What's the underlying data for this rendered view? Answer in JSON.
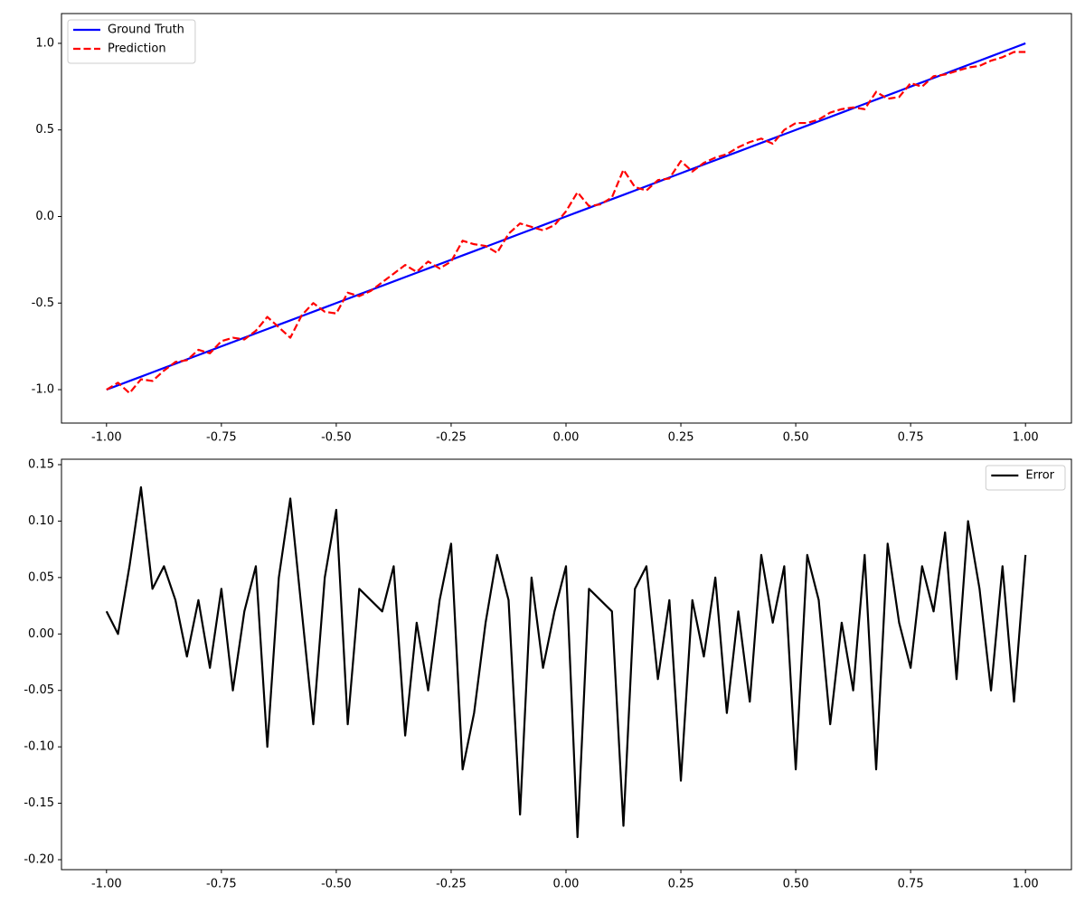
{
  "chart_data": [
    {
      "type": "line",
      "legend": "upper left",
      "xlim": [
        -1.098,
        1.1
      ],
      "ylim": [
        -1.193,
        1.172
      ],
      "xticks": [
        {
          "value": -1.0,
          "label": "-1.00"
        },
        {
          "value": -0.75,
          "label": "-0.75"
        },
        {
          "value": -0.5,
          "label": "-0.50"
        },
        {
          "value": -0.25,
          "label": "-0.25"
        },
        {
          "value": 0,
          "label": "0.00"
        },
        {
          "value": 0.25,
          "label": "0.25"
        },
        {
          "value": 0.5,
          "label": "0.50"
        },
        {
          "value": 0.75,
          "label": "0.75"
        },
        {
          "value": 1.0,
          "label": "1.00"
        }
      ],
      "yticks": [
        {
          "value": -1.0,
          "label": "-1.0"
        },
        -0.5,
        {
          "value": 0,
          "label": "0.0"
        },
        0.5,
        {
          "value": 1.0,
          "label": "1.0"
        }
      ],
      "x": [
        -1.0,
        -0.975,
        -0.95,
        -0.925,
        -0.9,
        -0.875,
        -0.85,
        -0.825,
        -0.8,
        -0.775,
        -0.75,
        -0.725,
        -0.7,
        -0.675,
        -0.65,
        -0.625,
        -0.6,
        -0.575,
        -0.55,
        -0.525,
        -0.5,
        -0.475,
        -0.45,
        -0.425,
        -0.4,
        -0.375,
        -0.35,
        -0.325,
        -0.3,
        -0.275,
        -0.25,
        -0.225,
        -0.2,
        -0.175,
        -0.15,
        -0.125,
        -0.1,
        -0.075,
        -0.05,
        -0.025,
        0,
        0.025,
        0.05,
        0.075,
        0.1,
        0.125,
        0.15,
        0.175,
        0.2,
        0.225,
        0.25,
        0.275,
        0.3,
        0.325,
        0.35,
        0.375,
        0.4,
        0.425,
        0.45,
        0.475,
        0.5,
        0.525,
        0.55,
        0.575,
        0.6,
        0.625,
        0.65,
        0.675,
        0.7,
        0.725,
        0.75,
        0.775,
        0.8,
        0.825,
        0.85,
        0.875,
        0.9,
        0.925,
        0.95,
        0.975,
        1.0
      ],
      "series": [
        {
          "name": "Ground Truth",
          "color": "#0000ff",
          "linestyle": "solid",
          "values": [
            -1.0,
            -0.975,
            -0.95,
            -0.925,
            -0.9,
            -0.875,
            -0.85,
            -0.825,
            -0.8,
            -0.775,
            -0.75,
            -0.725,
            -0.7,
            -0.675,
            -0.65,
            -0.625,
            -0.6,
            -0.575,
            -0.55,
            -0.525,
            -0.5,
            -0.475,
            -0.45,
            -0.425,
            -0.4,
            -0.375,
            -0.35,
            -0.325,
            -0.3,
            -0.275,
            -0.25,
            -0.225,
            -0.2,
            -0.175,
            -0.15,
            -0.125,
            -0.1,
            -0.075,
            -0.05,
            -0.025,
            0,
            0.025,
            0.05,
            0.075,
            0.1,
            0.125,
            0.15,
            0.175,
            0.2,
            0.225,
            0.25,
            0.275,
            0.3,
            0.325,
            0.35,
            0.375,
            0.4,
            0.425,
            0.45,
            0.475,
            0.5,
            0.525,
            0.55,
            0.575,
            0.6,
            0.625,
            0.65,
            0.675,
            0.7,
            0.725,
            0.75,
            0.775,
            0.8,
            0.825,
            0.85,
            0.875,
            0.9,
            0.925,
            0.95,
            0.975,
            1.0
          ]
        },
        {
          "name": "Prediction",
          "color": "#ff0000",
          "linestyle": "dashed",
          "values": [
            -1.0,
            -0.96,
            -1.02,
            -0.94,
            -0.95,
            -0.89,
            -0.84,
            -0.83,
            -0.77,
            -0.79,
            -0.72,
            -0.7,
            -0.71,
            -0.66,
            -0.58,
            -0.64,
            -0.7,
            -0.57,
            -0.5,
            -0.55,
            -0.56,
            -0.44,
            -0.46,
            -0.43,
            -0.38,
            -0.33,
            -0.28,
            -0.32,
            -0.26,
            -0.3,
            -0.26,
            -0.14,
            -0.16,
            -0.17,
            -0.21,
            -0.1,
            -0.04,
            -0.06,
            -0.08,
            -0.05,
            0.03,
            0.14,
            0.06,
            0.07,
            0.11,
            0.27,
            0.17,
            0.15,
            0.21,
            0.22,
            0.32,
            0.26,
            0.31,
            0.34,
            0.36,
            0.4,
            0.43,
            0.45,
            0.42,
            0.5,
            0.54,
            0.54,
            0.56,
            0.6,
            0.62,
            0.63,
            0.62,
            0.72,
            0.68,
            0.69,
            0.77,
            0.75,
            0.81,
            0.82,
            0.84,
            0.86,
            0.87,
            0.9,
            0.92,
            0.95,
            0.95
          ]
        }
      ]
    },
    {
      "type": "line",
      "legend": "upper right",
      "xlim": [
        -1.098,
        1.1
      ],
      "ylim": [
        -0.2088,
        0.1548
      ],
      "xticks": [
        {
          "value": -1.0,
          "label": "-1.00"
        },
        {
          "value": -0.75,
          "label": "-0.75"
        },
        {
          "value": -0.5,
          "label": "-0.50"
        },
        {
          "value": -0.25,
          "label": "-0.25"
        },
        {
          "value": 0,
          "label": "0.00"
        },
        {
          "value": 0.25,
          "label": "0.25"
        },
        {
          "value": 0.5,
          "label": "0.50"
        },
        {
          "value": 0.75,
          "label": "0.75"
        },
        {
          "value": 1.0,
          "label": "1.00"
        }
      ],
      "yticks": [
        {
          "value": -0.2,
          "label": "-0.20"
        },
        -0.15,
        {
          "value": -0.1,
          "label": "-0.10"
        },
        -0.05,
        {
          "value": 0,
          "label": "0.00"
        },
        0.05,
        {
          "value": 0.1,
          "label": "0.10"
        },
        0.15
      ],
      "x": [
        -1.0,
        -0.975,
        -0.95,
        -0.925,
        -0.9,
        -0.875,
        -0.85,
        -0.825,
        -0.8,
        -0.775,
        -0.75,
        -0.725,
        -0.7,
        -0.675,
        -0.65,
        -0.625,
        -0.6,
        -0.575,
        -0.55,
        -0.525,
        -0.5,
        -0.475,
        -0.45,
        -0.425,
        -0.4,
        -0.375,
        -0.35,
        -0.325,
        -0.3,
        -0.275,
        -0.25,
        -0.225,
        -0.2,
        -0.175,
        -0.15,
        -0.125,
        -0.1,
        -0.075,
        -0.05,
        -0.025,
        0,
        0.025,
        0.05,
        0.075,
        0.1,
        0.125,
        0.15,
        0.175,
        0.2,
        0.225,
        0.25,
        0.275,
        0.3,
        0.325,
        0.35,
        0.375,
        0.4,
        0.425,
        0.45,
        0.475,
        0.5,
        0.525,
        0.55,
        0.575,
        0.6,
        0.625,
        0.65,
        0.675,
        0.7,
        0.725,
        0.75,
        0.775,
        0.8,
        0.825,
        0.85,
        0.875,
        0.9,
        0.925,
        0.95,
        0.975,
        1.0
      ],
      "series": [
        {
          "name": "Error",
          "color": "#000000",
          "linestyle": "solid",
          "values": [
            0.02,
            0.0,
            0.06,
            0.13,
            0.04,
            0.06,
            0.03,
            -0.02,
            0.03,
            -0.03,
            0.04,
            -0.05,
            0.02,
            0.06,
            -0.1,
            0.05,
            0.12,
            0.02,
            -0.08,
            0.05,
            0.11,
            -0.08,
            0.04,
            0.03,
            0.02,
            0.06,
            -0.09,
            0.01,
            -0.05,
            0.03,
            0.08,
            -0.12,
            -0.07,
            0.01,
            0.07,
            0.03,
            -0.16,
            0.05,
            -0.03,
            0.02,
            0.06,
            -0.18,
            0.04,
            0.03,
            0.02,
            -0.17,
            0.04,
            0.06,
            -0.04,
            0.03,
            -0.13,
            0.03,
            -0.02,
            0.05,
            -0.07,
            0.02,
            -0.06,
            0.07,
            0.01,
            0.06,
            -0.12,
            0.07,
            0.03,
            -0.08,
            0.01,
            -0.05,
            0.07,
            -0.12,
            0.08,
            0.01,
            -0.03,
            0.06,
            0.02,
            0.09,
            -0.04,
            0.1,
            0.04,
            -0.05,
            0.06,
            -0.06,
            0.07
          ]
        }
      ]
    }
  ]
}
